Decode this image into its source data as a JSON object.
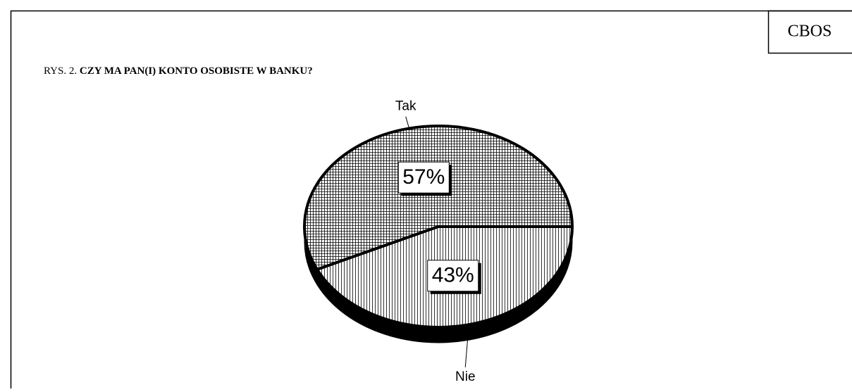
{
  "chart_data": {
    "type": "pie",
    "corner_label": "CBOS",
    "figure_label": "RYS. 2.",
    "title": "CZY MA PAN(I) KONTO OSOBISTE W BANKU?",
    "categories": [
      "Tak",
      "Nie"
    ],
    "values": [
      57,
      43
    ],
    "value_labels": [
      "57%",
      "43%"
    ]
  }
}
